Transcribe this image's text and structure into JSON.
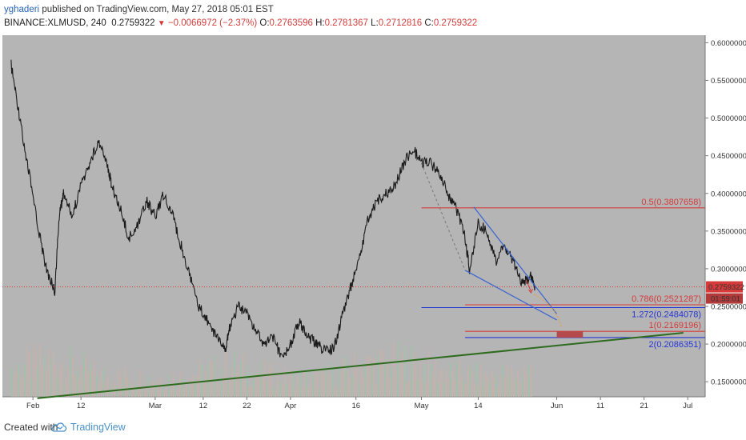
{
  "header": {
    "user": "yghaderi",
    "published": "published on TradingView.com, May 27, 2018 05:01 EST",
    "symbol": "BINANCE:XLMUSD, 240",
    "price": "0.2759322",
    "change": "−0.0066972 (−2.37%)",
    "o_label": "O:",
    "o_value": "0.2763596",
    "h_label": "H:",
    "h_value": "0.2781367",
    "l_label": "L:",
    "l_value": "0.2712816",
    "c_label": "C:",
    "c_value": "0.2759322"
  },
  "footer": {
    "created_with": "Created with",
    "brand": "TradingView"
  },
  "chart_data": {
    "type": "line",
    "symbol": "BINANCE:XLMUSD",
    "interval": "240",
    "background": "#b5b5b5",
    "grid": false,
    "ylim": [
      0.13,
      0.61
    ],
    "y_ticks": [
      "0.6000000",
      "0.5500000",
      "0.5000000",
      "0.4500000",
      "0.4000000",
      "0.3500000",
      "0.3000000",
      "0.2500000",
      "0.2000000",
      "0.1500000"
    ],
    "x_ticks": [
      "Feb",
      "12",
      "Mar",
      "12",
      "22",
      "Apr",
      "16",
      "May",
      "14",
      "Jun",
      "11",
      "21",
      "Jul"
    ],
    "x_dates": [
      "2018-02-01",
      "2018-02-12",
      "2018-03-01",
      "2018-03-12",
      "2018-03-22",
      "2018-04-01",
      "2018-04-16",
      "2018-05-01",
      "2018-05-14",
      "2018-06-01",
      "2018-06-11",
      "2018-06-21",
      "2018-07-01"
    ],
    "price_series": {
      "name": "",
      "color": "#1a1a1a",
      "x": [
        "2018-01-27",
        "2018-01-29",
        "2018-01-31",
        "2018-02-02",
        "2018-02-04",
        "2018-02-06",
        "2018-02-07",
        "2018-02-08",
        "2018-02-10",
        "2018-02-12",
        "2018-02-14",
        "2018-02-16",
        "2018-02-18",
        "2018-02-19",
        "2018-02-21",
        "2018-02-23",
        "2018-02-25",
        "2018-02-27",
        "2018-03-01",
        "2018-03-03",
        "2018-03-05",
        "2018-03-07",
        "2018-03-09",
        "2018-03-11",
        "2018-03-13",
        "2018-03-15",
        "2018-03-17",
        "2018-03-18",
        "2018-03-20",
        "2018-03-22",
        "2018-03-24",
        "2018-03-26",
        "2018-03-28",
        "2018-03-30",
        "2018-04-01",
        "2018-04-03",
        "2018-04-05",
        "2018-04-07",
        "2018-04-09",
        "2018-04-11",
        "2018-04-13",
        "2018-04-15",
        "2018-04-17",
        "2018-04-19",
        "2018-04-21",
        "2018-04-23",
        "2018-04-25",
        "2018-04-27",
        "2018-04-29",
        "2018-05-01",
        "2018-05-03",
        "2018-05-05",
        "2018-05-07",
        "2018-05-09",
        "2018-05-11",
        "2018-05-12",
        "2018-05-14",
        "2018-05-16",
        "2018-05-18",
        "2018-05-20",
        "2018-05-22",
        "2018-05-24",
        "2018-05-26",
        "2018-05-27"
      ],
      "y": [
        0.57,
        0.5,
        0.43,
        0.36,
        0.3,
        0.27,
        0.37,
        0.4,
        0.37,
        0.41,
        0.44,
        0.47,
        0.44,
        0.41,
        0.38,
        0.34,
        0.36,
        0.39,
        0.37,
        0.4,
        0.37,
        0.33,
        0.29,
        0.25,
        0.23,
        0.21,
        0.19,
        0.22,
        0.25,
        0.24,
        0.22,
        0.2,
        0.21,
        0.18,
        0.2,
        0.23,
        0.21,
        0.2,
        0.19,
        0.195,
        0.24,
        0.28,
        0.32,
        0.37,
        0.39,
        0.4,
        0.41,
        0.44,
        0.46,
        0.44,
        0.44,
        0.43,
        0.4,
        0.38,
        0.34,
        0.3,
        0.36,
        0.35,
        0.31,
        0.33,
        0.31,
        0.28,
        0.29,
        0.276
      ]
    },
    "current_price": {
      "value": 0.2759322,
      "label": "0.2759322",
      "timer": "01:59:01",
      "color": "#d53b3b"
    },
    "fib_levels": [
      {
        "label": "0.5(0.3807658)",
        "value": 0.3807658,
        "color": "#d53b3b"
      },
      {
        "label": "0.786(0.2521287)",
        "value": 0.2521287,
        "color": "#d53b3b"
      },
      {
        "label": "1.272(0.2484078)",
        "value": 0.2484078,
        "color": "#2435d6"
      },
      {
        "label": "1(0.2169196)",
        "value": 0.2169196,
        "color": "#d53b3b"
      },
      {
        "label": "2(0.2086351)",
        "value": 0.2086351,
        "color": "#2435d6"
      }
    ],
    "trendline": {
      "from": [
        "2018-02-02",
        0.128
      ],
      "to": [
        "2018-06-30",
        0.215
      ],
      "color": "#2e6b1e"
    },
    "wedge_upper": {
      "from": [
        "2018-05-13",
        0.382
      ],
      "to": [
        "2018-06-01",
        0.24
      ],
      "color": "#3a63d0"
    },
    "wedge_lower": {
      "from": [
        "2018-05-11",
        0.298
      ],
      "to": [
        "2018-06-01",
        0.232
      ],
      "color": "#3a63d0"
    },
    "dashed_line": {
      "from": [
        "2018-05-01",
        0.44
      ],
      "to": [
        "2018-05-11",
        0.298
      ],
      "color": "#777777"
    },
    "target_zone": {
      "from": "2018-06-01",
      "to": "2018-06-07",
      "ylim": [
        0.2086351,
        0.2169196
      ],
      "color": "#b54a4a"
    },
    "volume": {
      "color": "#c9b2a8",
      "x": [
        "2018-01-27",
        "2018-02-06",
        "2018-02-16",
        "2018-02-26",
        "2018-03-08",
        "2018-03-18",
        "2018-03-28",
        "2018-04-07",
        "2018-04-17",
        "2018-04-27",
        "2018-05-07",
        "2018-05-17",
        "2018-05-26"
      ],
      "values": [
        40,
        55,
        32,
        28,
        30,
        45,
        30,
        25,
        45,
        52,
        35,
        30,
        38
      ]
    }
  }
}
